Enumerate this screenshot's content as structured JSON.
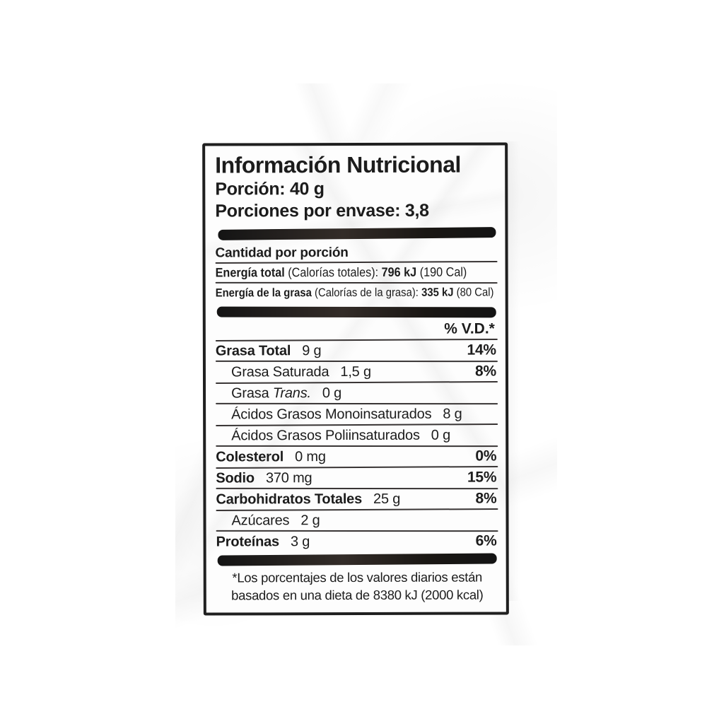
{
  "page": {
    "paper_color": "#ffffff",
    "ink_color": "#1c1c1c",
    "bar_color": "#1f1b18"
  },
  "label": {
    "title": "Información Nutricional",
    "serving_size_line": "Porción: 40 g",
    "servings_per_container_line": "Porciones por envase: 3,8",
    "amount_per_serving_heading": "Cantidad por porción",
    "energy_rows": [
      {
        "label": "Energía total",
        "paren": "(Calorías totales):",
        "kj": "796 kJ",
        "cal": "(190 Cal)"
      },
      {
        "label": "Energía de la grasa",
        "paren": "(Calorías de la grasa):",
        "kj": "335 kJ",
        "cal": "(80 Cal)"
      }
    ],
    "daily_value_header": "% V.D.*",
    "nutrients": [
      {
        "name": "Grasa Total",
        "value": "9 g",
        "pct": "14%",
        "bold": true,
        "indent": false
      },
      {
        "name": "Grasa Saturada",
        "value": "1,5 g",
        "pct": "8%",
        "bold": false,
        "indent": true
      },
      {
        "name": "Grasa",
        "name_italic": "Trans.",
        "value": "0 g",
        "pct": "",
        "bold": false,
        "indent": true
      },
      {
        "name": "Ácidos Grasos Monoinsaturados",
        "value": "8 g",
        "pct": "",
        "bold": false,
        "indent": true
      },
      {
        "name": "Ácidos Grasos Poliinsaturados",
        "value": "0 g",
        "pct": "",
        "bold": false,
        "indent": true
      },
      {
        "name": "Colesterol",
        "value": "0 mg",
        "pct": "0%",
        "bold": true,
        "indent": false
      },
      {
        "name": "Sodio",
        "value": "370 mg",
        "pct": "15%",
        "bold": true,
        "indent": false
      },
      {
        "name": "Carbohidratos Totales",
        "value": "25 g",
        "pct": "8%",
        "bold": true,
        "indent": false
      },
      {
        "name": "Azúcares",
        "value": "2 g",
        "pct": "",
        "bold": false,
        "indent": true
      },
      {
        "name": "Proteínas",
        "value": "3 g",
        "pct": "6%",
        "bold": true,
        "indent": false
      }
    ],
    "footnote_line1": "*Los porcentajes de los valores diarios están",
    "footnote_line2": "basados en una dieta de 8380 kJ (2000 kcal)"
  }
}
